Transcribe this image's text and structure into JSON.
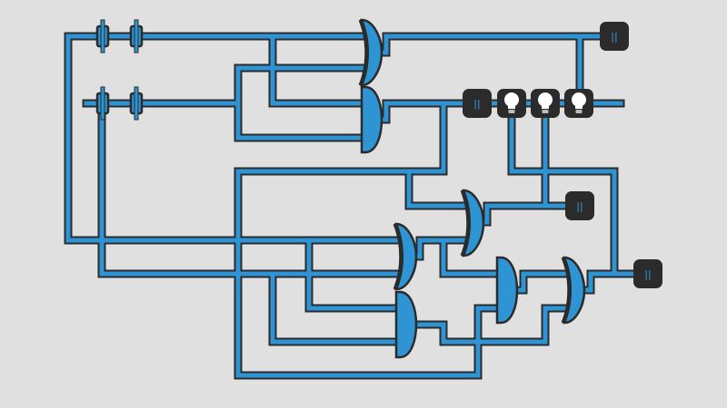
{
  "board": {
    "colors": {
      "background": "#e0e0e0",
      "wire": "#2f94d4",
      "outline": "#2b2b2b",
      "node": "#2b2b2b",
      "node_text": "#3a9ee0",
      "bulb": "#ffffff"
    },
    "nodes": {
      "out_top": {
        "symbol": "||"
      },
      "mid_left": {
        "symbol": "||"
      },
      "mid_right": {
        "symbol": "||"
      },
      "right_end": {
        "symbol": "||"
      }
    },
    "bulbs": [
      {
        "icon": "lightbulb-icon",
        "state": "on"
      },
      {
        "icon": "lightbulb-icon",
        "state": "on"
      },
      {
        "icon": "lightbulb-icon",
        "state": "on"
      }
    ],
    "inputs": [
      {
        "icon": "toggle-switch-icon"
      },
      {
        "icon": "toggle-switch-icon"
      },
      {
        "icon": "toggle-switch-icon"
      },
      {
        "icon": "toggle-switch-icon"
      }
    ]
  }
}
